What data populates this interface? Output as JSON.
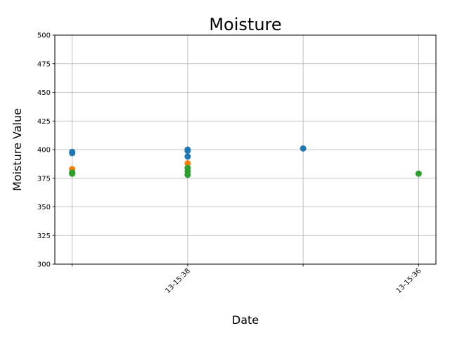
{
  "chart_data": {
    "type": "scatter",
    "title": "Moisture",
    "xlabel": "Date",
    "ylabel": "Moisture Value",
    "ylim": [
      300,
      500
    ],
    "yticks": [
      300,
      325,
      350,
      375,
      400,
      425,
      450,
      475,
      500
    ],
    "xticks": [
      {
        "position": 0,
        "label": ""
      },
      {
        "position": 1,
        "label": "13-15:38"
      },
      {
        "position": 2,
        "label": ""
      },
      {
        "position": 3,
        "label": "13-15:36"
      }
    ],
    "xlim": [
      -0.15,
      3.15
    ],
    "grid": true,
    "series": [
      {
        "color": "#1f77b4",
        "points": [
          {
            "x": 0,
            "y": 398
          },
          {
            "x": 0,
            "y": 397
          },
          {
            "x": 1,
            "y": 400
          },
          {
            "x": 1,
            "y": 399
          },
          {
            "x": 1,
            "y": 394
          },
          {
            "x": 2,
            "y": 401
          }
        ]
      },
      {
        "color": "#ff7f0e",
        "points": [
          {
            "x": 0,
            "y": 383
          },
          {
            "x": 1,
            "y": 388
          }
        ]
      },
      {
        "color": "#2ca02c",
        "points": [
          {
            "x": 0,
            "y": 380
          },
          {
            "x": 0,
            "y": 379
          },
          {
            "x": 1,
            "y": 384
          },
          {
            "x": 1,
            "y": 381
          },
          {
            "x": 1,
            "y": 378
          },
          {
            "x": 3,
            "y": 379
          }
        ]
      }
    ]
  }
}
